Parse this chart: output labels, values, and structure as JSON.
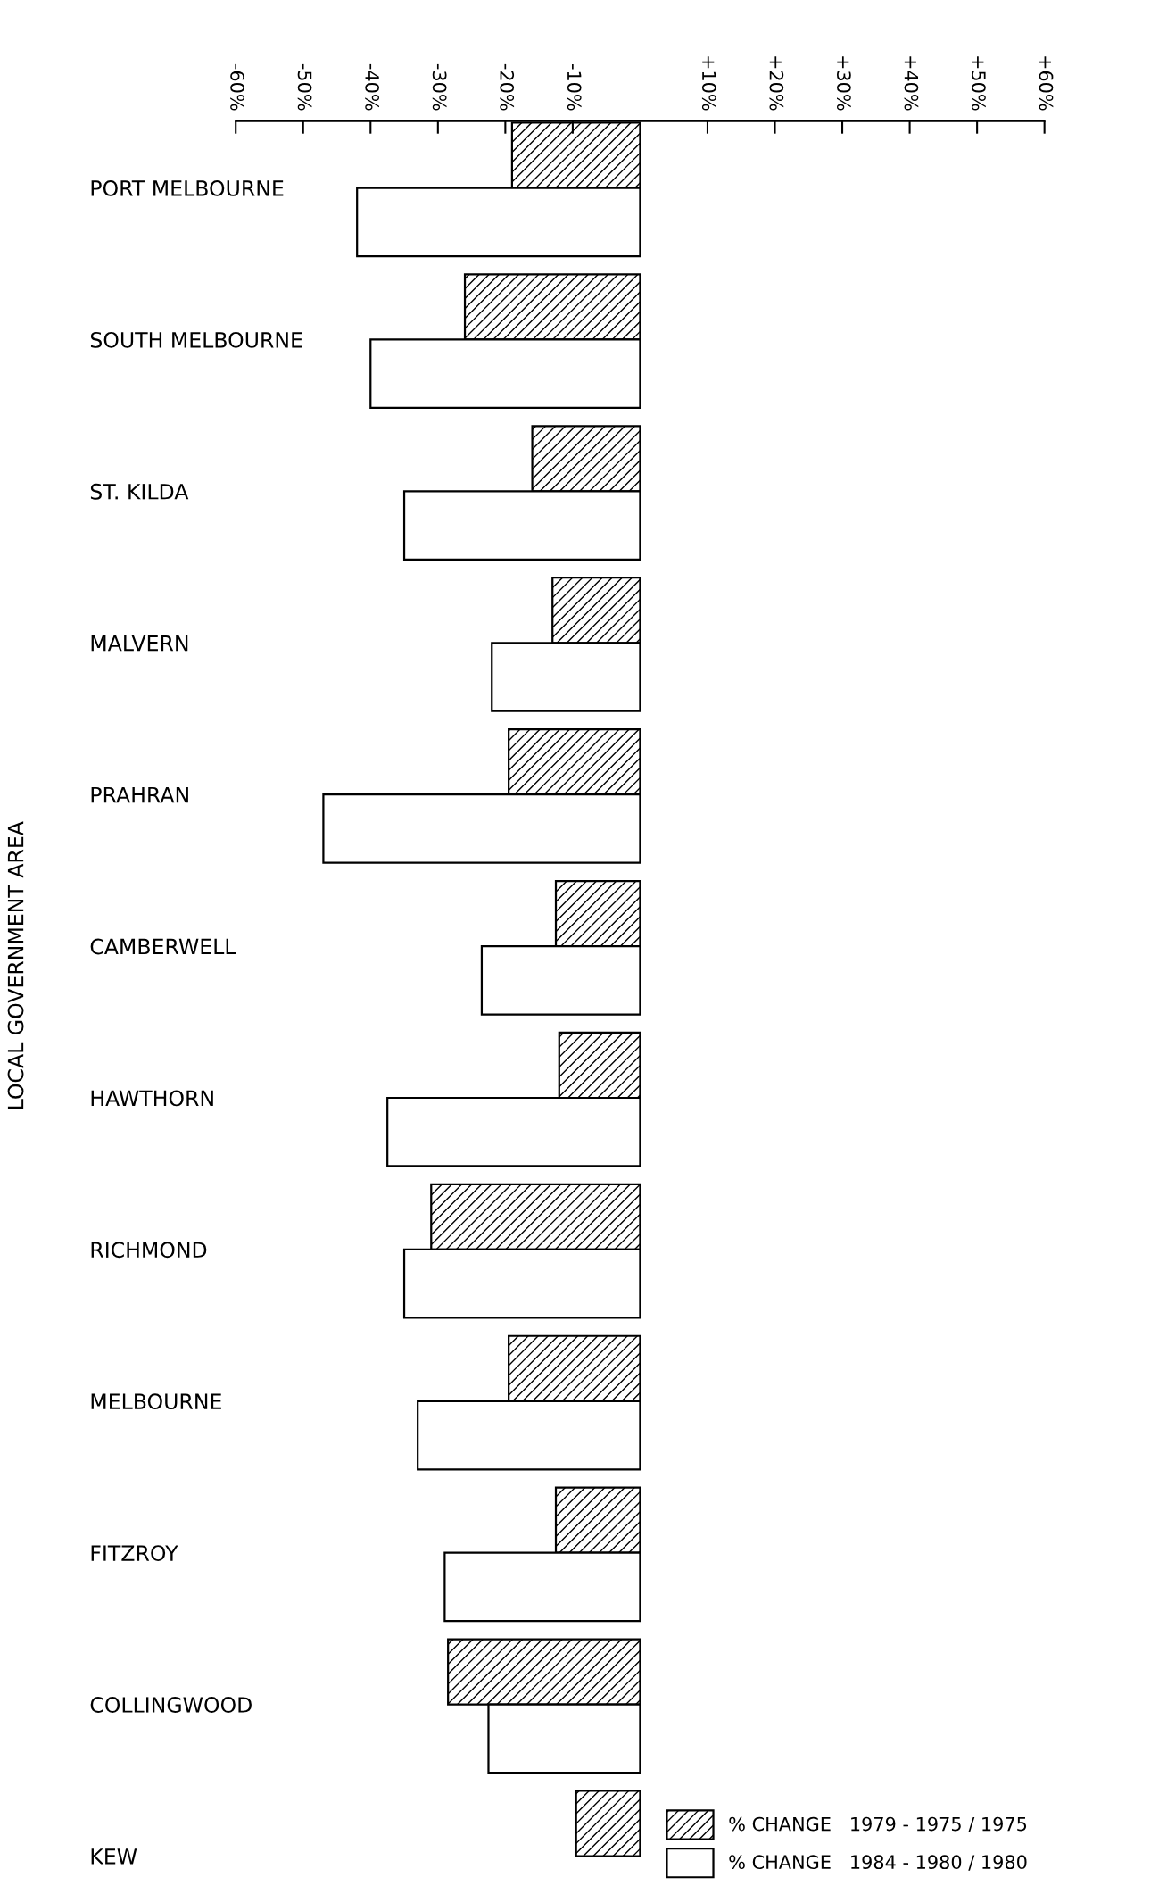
{
  "chart_data": {
    "type": "bar",
    "orientation": "horizontal",
    "ylabel": "LOCAL GOVERNMENT AREA",
    "categories": [
      "PORT MELBOURNE",
      "SOUTH MELBOURNE",
      "ST. KILDA",
      "MALVERN",
      "PRAHRAN",
      "CAMBERWELL",
      "HAWTHORN",
      "RICHMOND",
      "MELBOURNE",
      "FITZROY",
      "COLLINGWOOD",
      "KEW"
    ],
    "series": [
      {
        "name": "% CHANGE   1979 - 1975 / 1975",
        "color": "#000000",
        "values": [
          -19,
          -26,
          -16,
          -13,
          -19.5,
          -12.5,
          -12,
          -31,
          -19.5,
          -12.5,
          -28.5,
          -9.5
        ]
      },
      {
        "name": "% CHANGE   1984 - 1980 / 1980",
        "color": "#ffffff",
        "values": [
          -42,
          -40,
          -35,
          -22,
          -47,
          -23.5,
          -37.5,
          -35,
          -33,
          -29,
          -22.5,
          null
        ]
      }
    ],
    "xlim": [
      -60,
      60
    ],
    "xticks": [
      {
        "value": -60,
        "label": "-60%"
      },
      {
        "value": -50,
        "label": "-50%"
      },
      {
        "value": -40,
        "label": "-40%"
      },
      {
        "value": -30,
        "label": "-30%"
      },
      {
        "value": -20,
        "label": "-20%"
      },
      {
        "value": -10,
        "label": "-10%"
      },
      {
        "value": 10,
        "label": "+10%"
      },
      {
        "value": 20,
        "label": "+20%"
      },
      {
        "value": 30,
        "label": "+30%"
      },
      {
        "value": 40,
        "label": "+40%"
      },
      {
        "value": 50,
        "label": "+50%"
      },
      {
        "value": 60,
        "label": "+60%"
      }
    ],
    "grid": false,
    "legend": "bottom right"
  }
}
